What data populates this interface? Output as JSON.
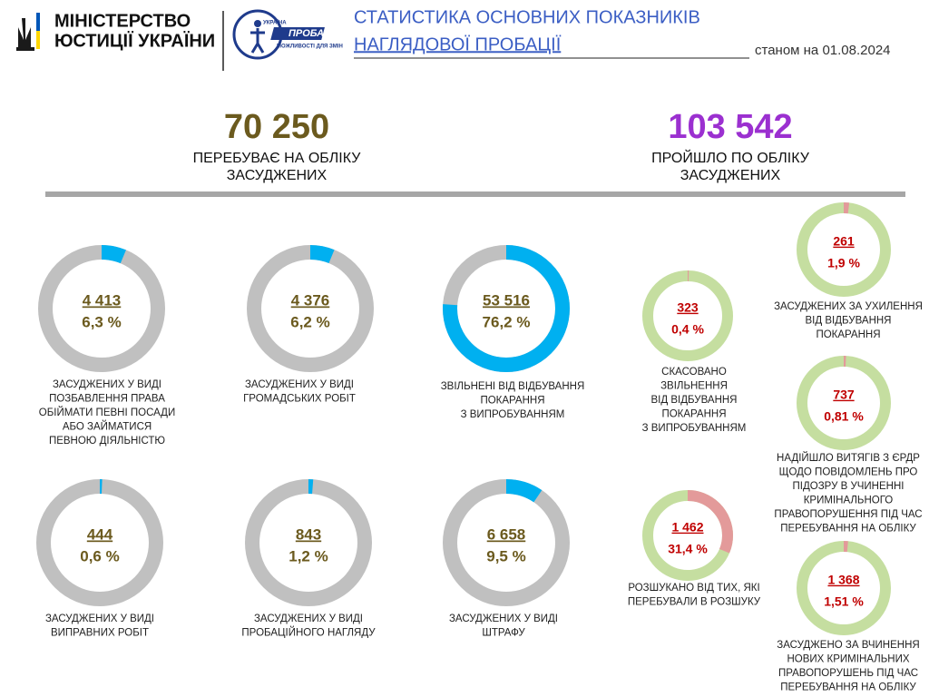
{
  "header": {
    "ministry": [
      "МІНІСТЕРСТВО",
      "ЮСТИЦІЇ УКРАЇНИ"
    ],
    "logo": [
      "УКРАЇНА",
      "ПРОБАЦІЯ",
      "МОЖЛИВОСТІ ДЛЯ ЗМІН"
    ],
    "title": [
      "СТАТИСТИКА ОСНОВНИХ ПОКАЗНИКІВ",
      "НАГЛЯДОВОЇ ПРОБАЦІЇ"
    ],
    "date": "станом на 01.08.2024"
  },
  "summary": [
    {
      "total": "70 250",
      "caption": [
        "ПЕРЕБУВАЄ НА ОБЛІКУ",
        "ЗАСУДЖЕНИХ"
      ]
    },
    {
      "total": "103 542",
      "caption": [
        "ПРОЙШЛО ПО ОБЛІКУ",
        "ЗАСУДЖЕНИХ"
      ]
    }
  ],
  "donuts": [
    {
      "count": "4 413",
      "percent": 6.3,
      "percent_label": "6,3 %",
      "caption": [
        "ЗАСУДЖЕНИХ  У  ВИДІ",
        "ПОЗБАВЛЕННЯ  ПРАВА",
        "ОБІЙМАТИ ПЕВНІ ПОСАДИ",
        "АБО ЗАЙМАТИСЯ",
        "ПЕВНОЮ ДІЯЛЬНІСТЮ"
      ]
    },
    {
      "count": "4 376",
      "percent": 6.2,
      "percent_label": "6,2 %",
      "caption": [
        "ЗАСУДЖЕНИХ  У  ВИДІ",
        "ГРОМАДСЬКИХ  РОБІТ"
      ]
    },
    {
      "count": "53 516",
      "percent": 76.2,
      "percent_label": "76,2 %",
      "caption": [
        "ЗВІЛЬНЕНІ   ВІД  ВІДБУВАННЯ",
        "ПОКАРАННЯ",
        "З ВИПРОБУВАННЯМ"
      ]
    },
    {
      "count": "444",
      "percent": 0.6,
      "percent_label": "0,6 %",
      "caption": [
        "ЗАСУДЖЕНИХ  У  ВИДІ",
        "ВИПРАВНИХ   РОБІТ"
      ]
    },
    {
      "count": "843",
      "percent": 1.2,
      "percent_label": "1,2 %",
      "caption": [
        "ЗАСУДЖЕНИХ  У  ВИДІ",
        "ПРОБАЦІЙНОГО  НАГЛЯДУ"
      ]
    },
    {
      "count": "6 658",
      "percent": 9.5,
      "percent_label": "9,5 %",
      "caption": [
        "ЗАСУДЖЕНИХ  У  ВИДІ",
        "ШТРАФУ"
      ]
    },
    {
      "count": "323",
      "percent": 0.4,
      "percent_label": "0,4 %",
      "caption": [
        "СКАСОВАНО",
        "ЗВІЛЬНЕННЯ",
        "ВІД  ВІДБУВАННЯ",
        "ПОКАРАННЯ",
        "З ВИПРОБУВАННЯМ"
      ]
    },
    {
      "count": "1 462",
      "percent": 31.4,
      "percent_label": "31,4 %",
      "caption": [
        "РОЗШУКАНО ВІД ТИХ, ЯКІ",
        "ПЕРЕБУВАЛИ  В  РОЗШУКУ"
      ]
    },
    {
      "count": "261",
      "percent": 1.9,
      "percent_label": "1,9 %",
      "caption": [
        "ЗАСУДЖЕНИХ  ЗА  УХИЛЕННЯ",
        "ВІД  ВІДБУВАННЯ",
        "ПОКАРАННЯ"
      ]
    },
    {
      "count": "737",
      "percent": 0.81,
      "percent_label": "0,81 %",
      "caption": [
        "НАДІЙШЛО  ВИТЯГІВ  З  ЄРДР",
        "ЩОДО  ПОВІДОМЛЕНЬ  ПРО",
        "ПІДОЗРУ  В  УЧИНЕННІ",
        "КРИМІНАЛЬНОГО",
        "ПРАВОПОРУШЕННЯ  ПІД  ЧАС",
        "ПЕРЕБУВАННЯ  НА  ОБЛІКУ"
      ]
    },
    {
      "count": "1 368",
      "percent": 1.51,
      "percent_label": "1,51 %",
      "caption": [
        "ЗАСУДЖЕНО  ЗА  ВЧИНЕННЯ",
        "НОВИХ  КРИМІНАЛЬНИХ",
        "ПРАВОПОРУШЕНЬ  ПІД  ЧАС",
        "ПЕРЕБУВАННЯ  НА  ОБЛІКУ"
      ]
    }
  ]
}
